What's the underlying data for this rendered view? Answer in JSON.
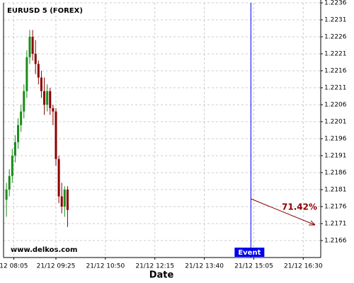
{
  "chart_data": {
    "type": "candlestick",
    "title": "EURUSD 5 (FOREX)",
    "x_label": "Date",
    "watermark": "www.delkos.com",
    "up_color": "#1a8c1a",
    "down_color": "#8b0000",
    "candles": {
      "open": [
        1.2178,
        1.2181,
        1.2185,
        1.2191,
        1.2195,
        1.22,
        1.2204,
        1.221,
        1.222,
        1.2226,
        1.2221,
        1.2218,
        1.2214,
        1.221,
        1.2206,
        1.221,
        1.2205,
        1.2204,
        1.219,
        1.2179,
        1.2176,
        1.2181
      ],
      "high": [
        1.2183,
        1.2187,
        1.2193,
        1.2197,
        1.2202,
        1.2206,
        1.2212,
        1.2222,
        1.2228,
        1.2228,
        1.2225,
        1.2219,
        1.2216,
        1.2214,
        1.2212,
        1.2211,
        1.2206,
        1.2205,
        1.2191,
        1.2183,
        1.2182,
        1.2182
      ],
      "low": [
        1.2173,
        1.2179,
        1.2183,
        1.2189,
        1.2193,
        1.2198,
        1.2202,
        1.2208,
        1.2218,
        1.2219,
        1.2215,
        1.2212,
        1.2208,
        1.2203,
        1.2204,
        1.2203,
        1.22,
        1.2188,
        1.2177,
        1.2174,
        1.2173,
        1.217
      ],
      "close": [
        1.2181,
        1.2185,
        1.2191,
        1.2195,
        1.22,
        1.2204,
        1.221,
        1.222,
        1.2226,
        1.2221,
        1.2218,
        1.2214,
        1.221,
        1.2206,
        1.221,
        1.2205,
        1.2204,
        1.219,
        1.2179,
        1.2176,
        1.2181,
        1.2175
      ]
    },
    "xlim": [
      -1,
      108
    ],
    "xticks": [
      {
        "value": 2.5,
        "label": "12 08:05"
      },
      {
        "value": 17,
        "label": "21/12 09:25"
      },
      {
        "value": 34,
        "label": "21/12 10:50"
      },
      {
        "value": 51,
        "label": "21/12 12:15"
      },
      {
        "value": 68,
        "label": "21/12 13:40"
      },
      {
        "value": 85,
        "label": "21/12 15:05"
      },
      {
        "value": 102,
        "label": "21/12 16:30"
      }
    ],
    "ylim": [
      1.2161,
      1.2236
    ],
    "yticks": [
      1.2166,
      1.2171,
      1.2176,
      1.2181,
      1.2186,
      1.2191,
      1.2196,
      1.2201,
      1.2206,
      1.2211,
      1.2216,
      1.2221,
      1.2226,
      1.2231,
      1.2236
    ],
    "grid": true,
    "event": {
      "label": "Event",
      "x": 84,
      "color": "#0000ee"
    },
    "forecast": {
      "label": "71.42%",
      "color": "#8b0000"
    }
  }
}
